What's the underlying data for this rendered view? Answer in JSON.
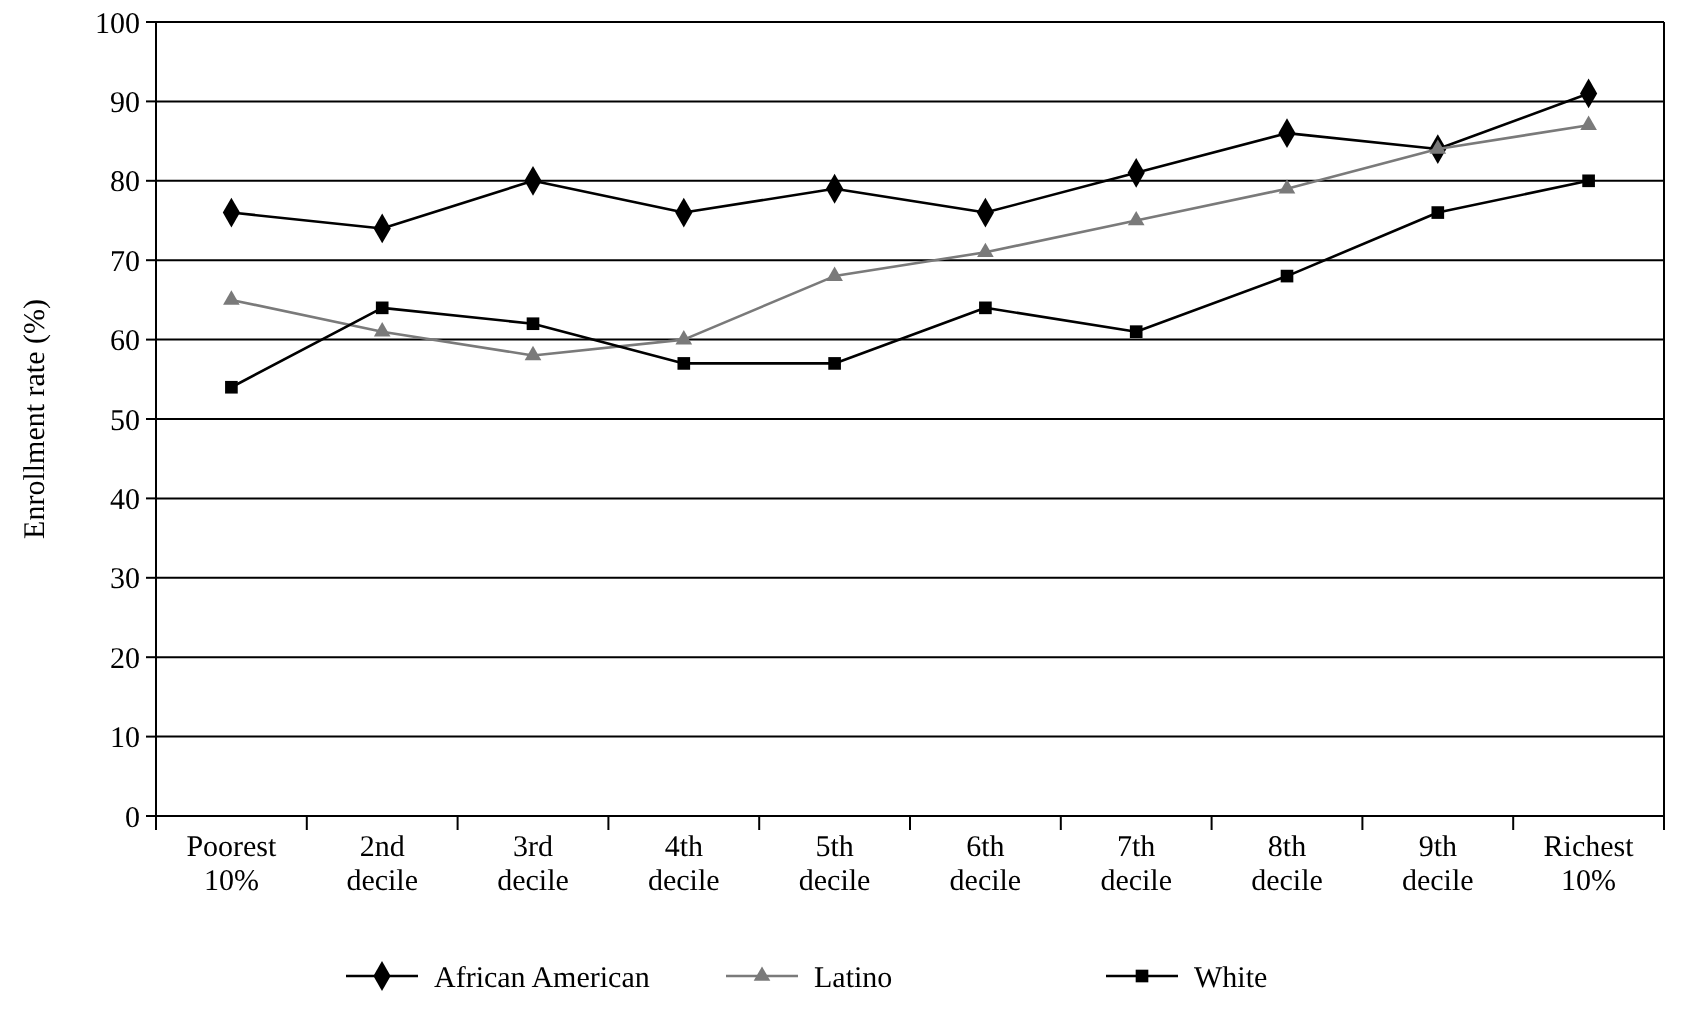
{
  "chart_data": {
    "type": "line",
    "ylabel": "Enrollment rate (%)",
    "categories": [
      "Poorest 10%",
      "2nd decile",
      "3rd decile",
      "4th decile",
      "5th decile",
      "6th decile",
      "7th decile",
      "8th decile",
      "9th decile",
      "Richest 10%"
    ],
    "ylim": [
      0,
      100
    ],
    "yticks": [
      0,
      10,
      20,
      30,
      40,
      50,
      60,
      70,
      80,
      90,
      100
    ],
    "grid": "y",
    "legend": "bottom",
    "line_style": "solid",
    "series": [
      {
        "name": "African American",
        "color": "#000000",
        "marker": "diamond",
        "values": [
          76,
          74,
          80,
          76,
          79,
          76,
          81,
          86,
          84,
          91
        ]
      },
      {
        "name": "Latino",
        "color": "#7a7a7a",
        "marker": "triangle",
        "values": [
          65,
          61,
          58,
          60,
          68,
          71,
          75,
          79,
          84,
          87
        ]
      },
      {
        "name": "White",
        "color": "#000000",
        "marker": "square",
        "values": [
          54,
          64,
          62,
          57,
          57,
          64,
          61,
          68,
          76,
          80
        ]
      }
    ]
  }
}
